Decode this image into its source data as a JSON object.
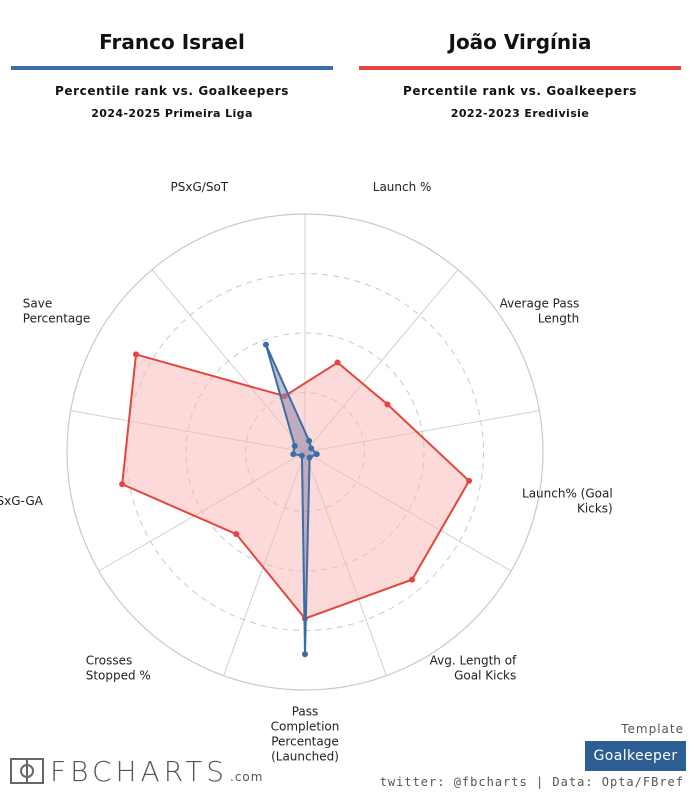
{
  "header": {
    "player1": "Franco Israel",
    "player2": "João Virgínia",
    "subtitle1": "Percentile rank vs. Goalkeepers",
    "subtitle2": "Percentile rank vs. Goalkeepers",
    "competition1": "2024-2025 Primeira Liga",
    "competition2": "2022-2023 Eredivisie"
  },
  "colors": {
    "player1": "#3a6ea5",
    "player2": "#e4463e",
    "player2_fill": "#f7b6b3",
    "player1_fill": "#8f87a8"
  },
  "chart_data": {
    "type": "radar",
    "range": [
      0,
      100
    ],
    "grid": true,
    "metrics": [
      "Launch %",
      "Average Pass Length",
      "Launch% (Goal Kicks)",
      "Avg. Length of Goal Kicks",
      "Pass Completion Percentage (Launched)",
      "Crosses Stopped %",
      "PSxG-GA",
      "Save Percentage",
      "PSxG/SoT"
    ],
    "series": [
      {
        "name": "Franco Israel",
        "values": [
          5,
          3,
          5,
          3,
          85,
          2,
          5,
          5,
          48
        ]
      },
      {
        "name": "João Virgínia",
        "values": [
          40,
          40,
          70,
          70,
          70,
          45,
          78,
          82,
          25
        ]
      }
    ]
  },
  "footer": {
    "template_label": "Template",
    "template_value": "Goalkeeper",
    "credits": "twitter: @fbcharts | Data: Opta/FBref",
    "logo_text": "FBCHARTS",
    "logo_domain": ".com"
  }
}
